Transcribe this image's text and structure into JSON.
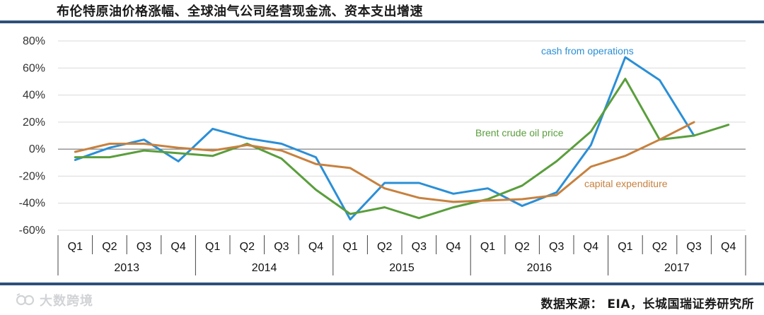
{
  "header": {
    "title": "布伦特原油价格涨幅、全球油气公司经营现金流、资本支出增速"
  },
  "footer": {
    "source": "数据来源： EIA，长城国瑞证券研究所",
    "watermark": "大数跨境"
  },
  "colors": {
    "bar": "#2e4f7a",
    "cash": "#2b8fd6",
    "brent": "#5a9e3c",
    "capex": "#c7813f",
    "grid": "#d9d9d9"
  },
  "chart_data": {
    "type": "line",
    "title": "布伦特原油价格涨幅、全球油气公司经营现金流、资本支出增速",
    "xlabel": "",
    "ylabel": "",
    "ylim": [
      -60,
      80
    ],
    "yticks": [
      80,
      60,
      40,
      20,
      0,
      -20,
      -40,
      -60
    ],
    "ytick_labels": [
      "80%",
      "60%",
      "40%",
      "20%",
      "0%",
      "-20%",
      "-40%",
      "-60%"
    ],
    "grid": true,
    "categories": [
      "Q1",
      "Q2",
      "Q3",
      "Q4",
      "Q1",
      "Q2",
      "Q3",
      "Q4",
      "Q1",
      "Q2",
      "Q3",
      "Q4",
      "Q1",
      "Q2",
      "Q3",
      "Q4",
      "Q1",
      "Q2",
      "Q3",
      "Q4"
    ],
    "years": [
      "2013",
      "2014",
      "2015",
      "2016",
      "2017"
    ],
    "series": [
      {
        "name": "cash from operations",
        "color": "#2b8fd6",
        "values": [
          -8,
          1,
          7,
          -9,
          15,
          8,
          4,
          -6,
          -52,
          -25,
          -25,
          -33,
          -29,
          -42,
          -32,
          3,
          68,
          51,
          10,
          null
        ]
      },
      {
        "name": "Brent crude oil price",
        "color": "#5a9e3c",
        "values": [
          -6,
          -6,
          -1,
          -3,
          -5,
          4,
          -7,
          -30,
          -48,
          -43,
          -51,
          -43,
          -37,
          -27,
          -9,
          13,
          52,
          7,
          10,
          18
        ]
      },
      {
        "name": "capital expenditure",
        "color": "#c7813f",
        "values": [
          -2,
          4,
          4,
          1,
          -1,
          3,
          -1,
          -11,
          -14,
          -29,
          -36,
          -39,
          -38,
          -37,
          -34,
          -13,
          -5,
          7,
          20,
          null
        ]
      }
    ]
  }
}
